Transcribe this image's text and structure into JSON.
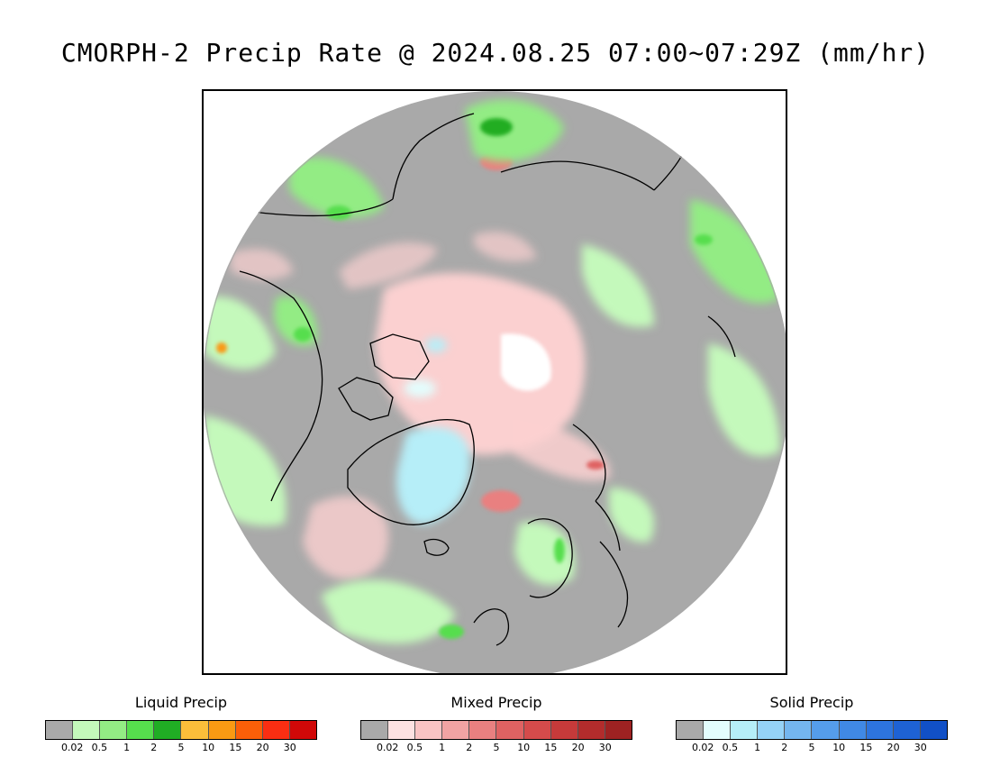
{
  "title": "CMORPH-2 Precip Rate @ 2024.08.25 07:00~07:29Z (mm/hr)",
  "map": {
    "projection": "polar stereographic (north pole)",
    "colors": {
      "no_precip": "#a9a9a9",
      "coast": "#000000",
      "frame": "#000000"
    }
  },
  "legends": [
    {
      "title": "Liquid Precip",
      "ticks": [
        "0.02",
        "0.5",
        "1",
        "2",
        "5",
        "10",
        "15",
        "20",
        "30"
      ],
      "colors": [
        "#a9a9a9",
        "#c4f9bb",
        "#93ec84",
        "#56de4d",
        "#20ad24",
        "#fbbe3a",
        "#f99a13",
        "#fb5f08",
        "#f92e12",
        "#d10808"
      ]
    },
    {
      "title": "Mixed Precip",
      "ticks": [
        "0.02",
        "0.5",
        "1",
        "2",
        "5",
        "10",
        "15",
        "20",
        "30"
      ],
      "colors": [
        "#a9a9a9",
        "#fde1e1",
        "#f9c3c3",
        "#f1a3a3",
        "#e98080",
        "#df6262",
        "#d54b4b",
        "#c63a3a",
        "#b22c2c",
        "#9e2222"
      ]
    },
    {
      "title": "Solid Precip",
      "ticks": [
        "0.02",
        "0.5",
        "1",
        "2",
        "5",
        "10",
        "15",
        "20",
        "30"
      ],
      "colors": [
        "#a9a9a9",
        "#e3fdfd",
        "#b6eef8",
        "#95d2f7",
        "#74b6ef",
        "#559deb",
        "#4089e5",
        "#2d74de",
        "#1e62d4",
        "#1150c6"
      ]
    }
  ]
}
